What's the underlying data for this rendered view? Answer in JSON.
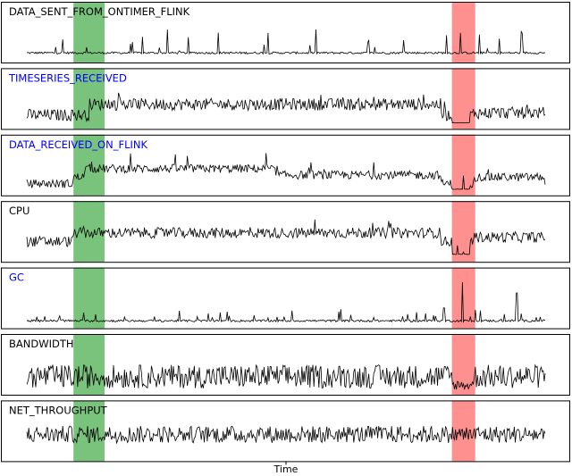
{
  "chart_data": {
    "type": "line",
    "xlabel": "Time",
    "x_range": [
      0,
      100
    ],
    "highlight_regions": [
      {
        "start": 9,
        "end": 15,
        "color": "#4caf50"
      },
      {
        "start": 82,
        "end": 86.5,
        "color": "#ff6b6b"
      }
    ],
    "series": [
      {
        "name": "DATA_SENT_FROM_ONTIMER_FLINK",
        "label_color": "#000000",
        "baseline": 0.1,
        "noise": 0.05,
        "spike_prob": 0.05,
        "spike_amp": 0.55,
        "segments": []
      },
      {
        "name": "TIMESERIES_RECEIVED",
        "label_color": "#0000ff",
        "baseline": 0.2,
        "noise": 0.28,
        "spike_prob": 0.04,
        "spike_amp": 0.3,
        "segments": [
          {
            "start": 0,
            "end": 10,
            "level": 0.2
          },
          {
            "start": 12,
            "end": 80,
            "level": 0.45
          },
          {
            "start": 82,
            "end": 85.5,
            "level": 0.02,
            "noise": 0.01
          },
          {
            "start": 86,
            "end": 100,
            "level": 0.25
          }
        ]
      },
      {
        "name": "DATA_RECEIVED_ON_FLINK",
        "label_color": "#0000ff",
        "baseline": 0.15,
        "noise": 0.2,
        "spike_prob": 0.03,
        "spike_amp": 0.35,
        "segments": [
          {
            "start": 9,
            "end": 11,
            "level": 0.3
          },
          {
            "start": 11,
            "end": 48,
            "level": 0.5
          },
          {
            "start": 48,
            "end": 80,
            "level": 0.35
          },
          {
            "start": 82,
            "end": 85.5,
            "level": 0.02,
            "noise": 0.01
          },
          {
            "start": 86,
            "end": 100,
            "level": 0.3
          }
        ]
      },
      {
        "name": "CPU",
        "label_color": "#000000",
        "baseline": 0.35,
        "noise": 0.25,
        "spike_prob": 0.03,
        "spike_amp": 0.3,
        "segments": [
          {
            "start": 9,
            "end": 80,
            "level": 0.55
          },
          {
            "start": 82,
            "end": 85.5,
            "level": 0.05,
            "noise": 0.01
          },
          {
            "start": 86,
            "end": 100,
            "level": 0.45
          }
        ]
      },
      {
        "name": "GC",
        "label_color": "#0000ff",
        "baseline": 0.05,
        "noise": 0.05,
        "spike_prob": 0.06,
        "spike_amp": 0.25,
        "segments": [],
        "big_spikes": [
          {
            "x": 84.0,
            "h": 0.95
          },
          {
            "x": 94.5,
            "h": 0.7
          },
          {
            "x": 80.5,
            "h": 0.35
          }
        ]
      },
      {
        "name": "BANDWIDTH",
        "label_color": "#000000",
        "baseline": 0.3,
        "noise": 0.55,
        "spike_prob": 0.0,
        "spike_amp": 0.0,
        "segments": [
          {
            "start": 82,
            "end": 86,
            "level": 0.1,
            "noise": 0.25
          }
        ]
      },
      {
        "name": "NET_THROUGHPUT",
        "label_color": "#000000",
        "baseline": 0.5,
        "noise": 0.4,
        "spike_prob": 0.02,
        "spike_amp": 0.2,
        "segments": []
      }
    ]
  }
}
